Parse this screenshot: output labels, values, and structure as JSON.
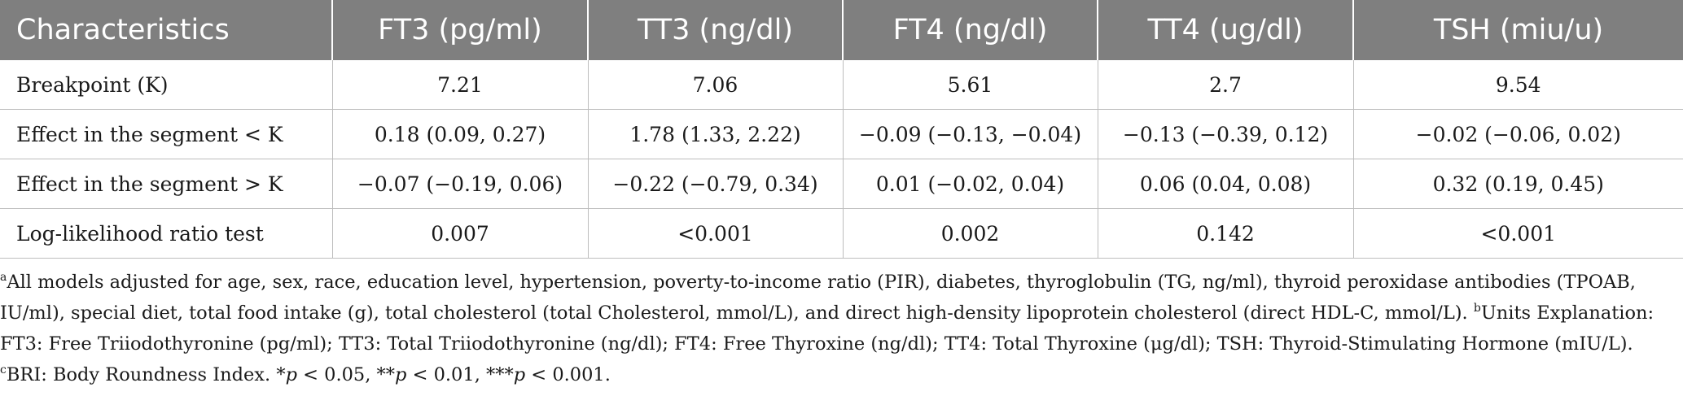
{
  "table": {
    "headers": [
      "Characteristics",
      "FT3 (pg/ml)",
      "TT3 (ng/dl)",
      "FT4 (ng/dl)",
      "TT4 (ug/dl)",
      "TSH (miu/u)"
    ],
    "rows": [
      [
        "Breakpoint (K)",
        "7.21",
        "7.06",
        "5.61",
        "2.7",
        "9.54"
      ],
      [
        "Effect in the segment < K",
        "0.18 (0.09, 0.27)",
        "1.78 (1.33, 2.22)",
        "−0.09 (−0.13, −0.04)",
        "−0.13 (−0.39, 0.12)",
        "−0.02 (−0.06, 0.02)"
      ],
      [
        "Effect in the segment > K",
        "−0.07 (−0.19, 0.06)",
        "−0.22 (−0.79, 0.34)",
        "0.01 (−0.02, 0.04)",
        "0.06 (0.04, 0.08)",
        "0.32 (0.19, 0.45)"
      ],
      [
        "Log-likelihood ratio test",
        "0.007",
        "<0.001",
        "0.002",
        "0.142",
        "<0.001"
      ]
    ]
  },
  "notes": {
    "a_mark": "a",
    "a_text": "All models adjusted for age, sex, race, education level, hypertension, poverty-to-income ratio (PIR), diabetes, thyroglobulin (TG, ng/ml), thyroid peroxidase antibodies (TPOAB, IU/ml), special diet, total food intake (g), total cholesterol (total Cholesterol, mmol/L), and direct high-density lipoprotein cholesterol (direct HDL-C, mmol/L). ",
    "b_mark": "b",
    "b_text": "Units Explanation: FT3: Free Triiodothyronine (pg/ml); TT3: Total Triiodothyronine (ng/dl); FT4: Free Thyroxine (ng/dl); TT4: Total Thyroxine (μg/dl); TSH: Thyroid-Stimulating Hormone (mIU/L). ",
    "c_mark": "c",
    "c_text": "BRI: Body Roundness Index. ",
    "sig_star1": "*",
    "p": "p",
    "sig_1": " < 0.05, ",
    "sig_star2": "**",
    "sig_2": " < 0.01, ",
    "sig_star3": "***",
    "sig_3": " < 0.001."
  }
}
